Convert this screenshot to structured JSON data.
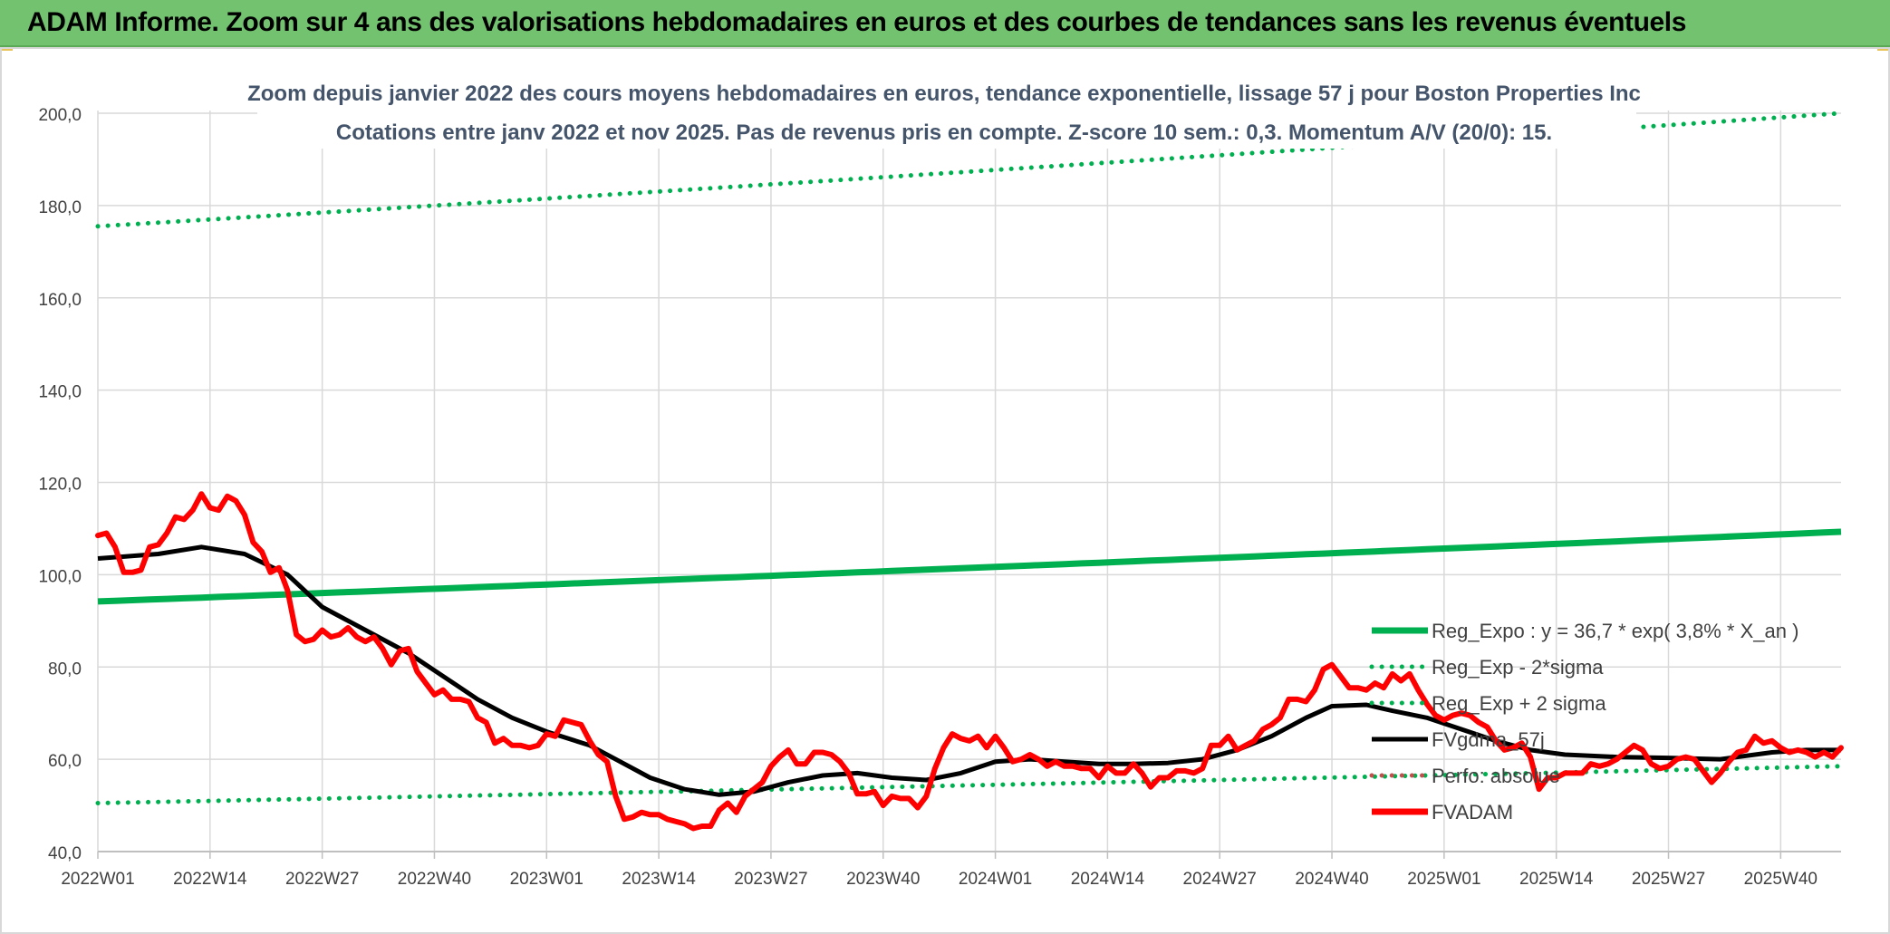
{
  "header": {
    "title": "ADAM Informe. Zoom sur 4 ans des valorisations hebdomadaires en euros et des courbes de tendances sans les revenus éventuels"
  },
  "chart_data": {
    "type": "line",
    "title_line1": "Zoom depuis janvier 2022 des cours moyens hebdomadaires en euros, tendance exponentielle, lissage 57 j pour Boston Properties Inc",
    "title_line2": "Cotations entre janv 2022 et nov 2025. Pas de revenus pris en compte. Z-score 10 sem.: 0,3. Momentum A/V (20/0): 15.",
    "ylim": [
      40,
      200
    ],
    "yticks": [
      "40,0",
      "60,0",
      "80,0",
      "100,0",
      "120,0",
      "140,0",
      "160,0",
      "180,0",
      "200,0"
    ],
    "ytick_values": [
      40,
      60,
      80,
      100,
      120,
      140,
      160,
      180,
      200
    ],
    "x_weeks": 202,
    "xticks": [
      "2022W01",
      "2022W14",
      "2022W27",
      "2022W40",
      "2023W01",
      "2023W14",
      "2023W27",
      "2023W40",
      "2024W01",
      "2024W14",
      "2024W27",
      "2024W40",
      "2025W01",
      "2025W14",
      "2025W27",
      "2025W40"
    ],
    "xtick_weeks": [
      0,
      13,
      26,
      39,
      52,
      65,
      78,
      91,
      104,
      117,
      130,
      143,
      156,
      169,
      182,
      195
    ],
    "colors": {
      "reg": "#00b050",
      "band": "#00b050",
      "smooth": "#000000",
      "price": "#ff0000",
      "perf": "#c0504d",
      "grid": "#d9d9d9",
      "axis_text": "#404040",
      "title_text": "#44546a"
    },
    "series": [
      {
        "name": "Reg_Expo : y = 36,7 * exp( 3,8% *  X_an )",
        "style": "solid",
        "kind": "reg",
        "start": 94.2,
        "end": 109.3
      },
      {
        "name": "Reg_Exp - 2*sigma",
        "style": "dotted",
        "kind": "reg_low",
        "start": 50.5,
        "end": 58.5
      },
      {
        "name": "Reg_Exp + 2 sigma",
        "style": "dotted",
        "kind": "reg_high",
        "start": 175.5,
        "end": 200
      },
      {
        "name": "FVgdma_57j",
        "style": "solid",
        "kind": "smooth",
        "points": [
          [
            0,
            103.5
          ],
          [
            7,
            104.5
          ],
          [
            12,
            106
          ],
          [
            17,
            104.5
          ],
          [
            22,
            100
          ],
          [
            26,
            93
          ],
          [
            31,
            88
          ],
          [
            36,
            83
          ],
          [
            40,
            78
          ],
          [
            44,
            73
          ],
          [
            48,
            69
          ],
          [
            52,
            66
          ],
          [
            57,
            63
          ],
          [
            60,
            60
          ],
          [
            64,
            56
          ],
          [
            68,
            53.5
          ],
          [
            72,
            52.3
          ],
          [
            76,
            53
          ],
          [
            80,
            55
          ],
          [
            84,
            56.5
          ],
          [
            88,
            57
          ],
          [
            92,
            56
          ],
          [
            96,
            55.5
          ],
          [
            100,
            57
          ],
          [
            104,
            59.5
          ],
          [
            108,
            60
          ],
          [
            112,
            59.5
          ],
          [
            116,
            59
          ],
          [
            120,
            59
          ],
          [
            124,
            59.2
          ],
          [
            128,
            60
          ],
          [
            132,
            62
          ],
          [
            136,
            65
          ],
          [
            140,
            69
          ],
          [
            143,
            71.5
          ],
          [
            147,
            71.8
          ],
          [
            150,
            70.5
          ],
          [
            154,
            69
          ],
          [
            158,
            66.5
          ],
          [
            162,
            64
          ],
          [
            166,
            62
          ],
          [
            170,
            61
          ],
          [
            176,
            60.5
          ],
          [
            182,
            60.3
          ],
          [
            188,
            60
          ],
          [
            194,
            61.5
          ],
          [
            198,
            62
          ],
          [
            202,
            62
          ]
        ]
      },
      {
        "name": "Perfo: absolue",
        "style": "dotted",
        "kind": "perf"
      },
      {
        "name": "FVADAM",
        "style": "solid",
        "kind": "price",
        "points": [
          [
            0,
            108.5
          ],
          [
            1,
            109
          ],
          [
            2,
            106
          ],
          [
            3,
            100.5
          ],
          [
            4,
            100.5
          ],
          [
            5,
            101
          ],
          [
            6,
            106
          ],
          [
            7,
            106.5
          ],
          [
            8,
            109
          ],
          [
            9,
            112.5
          ],
          [
            10,
            112
          ],
          [
            11,
            114
          ],
          [
            12,
            117.5
          ],
          [
            13,
            114.5
          ],
          [
            14,
            114
          ],
          [
            15,
            117
          ],
          [
            16,
            116
          ],
          [
            17,
            113
          ],
          [
            18,
            107
          ],
          [
            19,
            105
          ],
          [
            20,
            100.5
          ],
          [
            21,
            101.5
          ],
          [
            22,
            96.5
          ],
          [
            23,
            87
          ],
          [
            24,
            85.5
          ],
          [
            25,
            86
          ],
          [
            26,
            88
          ],
          [
            27,
            86.5
          ],
          [
            28,
            87
          ],
          [
            29,
            88.5
          ],
          [
            30,
            86.5
          ],
          [
            31,
            85.5
          ],
          [
            32,
            86.5
          ],
          [
            33,
            84
          ],
          [
            34,
            80.5
          ],
          [
            35,
            83.5
          ],
          [
            36,
            84
          ],
          [
            37,
            79
          ],
          [
            38,
            76.5
          ],
          [
            39,
            74
          ],
          [
            40,
            75
          ],
          [
            41,
            73
          ],
          [
            42,
            73
          ],
          [
            43,
            72.5
          ],
          [
            44,
            69
          ],
          [
            45,
            68
          ],
          [
            46,
            63.5
          ],
          [
            47,
            64.5
          ],
          [
            48,
            63
          ],
          [
            49,
            63
          ],
          [
            50,
            62.5
          ],
          [
            51,
            63
          ],
          [
            52,
            65.5
          ],
          [
            53,
            65
          ],
          [
            54,
            68.5
          ],
          [
            55,
            68
          ],
          [
            56,
            67.5
          ],
          [
            57,
            64
          ],
          [
            58,
            61
          ],
          [
            59,
            59.5
          ],
          [
            60,
            52
          ],
          [
            61,
            47
          ],
          [
            62,
            47.5
          ],
          [
            63,
            48.5
          ],
          [
            64,
            48
          ],
          [
            65,
            48
          ],
          [
            66,
            47
          ],
          [
            67,
            46.5
          ],
          [
            68,
            46
          ],
          [
            69,
            45
          ],
          [
            70,
            45.5
          ],
          [
            71,
            45.5
          ],
          [
            72,
            49
          ],
          [
            73,
            50.5
          ],
          [
            74,
            48.5
          ],
          [
            75,
            52
          ],
          [
            76,
            53.5
          ],
          [
            77,
            55
          ],
          [
            78,
            58.5
          ],
          [
            79,
            60.5
          ],
          [
            80,
            62
          ],
          [
            81,
            59
          ],
          [
            82,
            59
          ],
          [
            83,
            61.5
          ],
          [
            84,
            61.5
          ],
          [
            85,
            61
          ],
          [
            86,
            59.5
          ],
          [
            87,
            57
          ],
          [
            88,
            52.5
          ],
          [
            89,
            52.5
          ],
          [
            90,
            53
          ],
          [
            91,
            50
          ],
          [
            92,
            52
          ],
          [
            93,
            51.5
          ],
          [
            94,
            51.5
          ],
          [
            95,
            49.5
          ],
          [
            96,
            52
          ],
          [
            97,
            58
          ],
          [
            98,
            62.5
          ],
          [
            99,
            65.5
          ],
          [
            100,
            64.5
          ],
          [
            101,
            64
          ],
          [
            102,
            65
          ],
          [
            103,
            62.5
          ],
          [
            104,
            65
          ],
          [
            105,
            62.5
          ],
          [
            106,
            59.5
          ],
          [
            107,
            60
          ],
          [
            108,
            61
          ],
          [
            109,
            60
          ],
          [
            110,
            58.5
          ],
          [
            111,
            59.5
          ],
          [
            112,
            58.5
          ],
          [
            113,
            58.5
          ],
          [
            114,
            58
          ],
          [
            115,
            58
          ],
          [
            116,
            56
          ],
          [
            117,
            58.5
          ],
          [
            118,
            57
          ],
          [
            119,
            57
          ],
          [
            120,
            59
          ],
          [
            121,
            57
          ],
          [
            122,
            54
          ],
          [
            123,
            56
          ],
          [
            124,
            56
          ],
          [
            125,
            57.5
          ],
          [
            126,
            57.5
          ],
          [
            127,
            57
          ],
          [
            128,
            58
          ],
          [
            129,
            63
          ],
          [
            130,
            63
          ],
          [
            131,
            65
          ],
          [
            132,
            62
          ],
          [
            133,
            63
          ],
          [
            134,
            64
          ],
          [
            135,
            66.5
          ],
          [
            136,
            67.5
          ],
          [
            137,
            69
          ],
          [
            138,
            73
          ],
          [
            139,
            73
          ],
          [
            140,
            72.5
          ],
          [
            141,
            75
          ],
          [
            142,
            79.5
          ],
          [
            143,
            80.5
          ],
          [
            144,
            78
          ],
          [
            145,
            75.5
          ],
          [
            146,
            75.5
          ],
          [
            147,
            75
          ],
          [
            148,
            76.5
          ],
          [
            149,
            75.5
          ],
          [
            150,
            78.5
          ],
          [
            151,
            77
          ],
          [
            152,
            78.5
          ],
          [
            153,
            75
          ],
          [
            154,
            72
          ],
          [
            155,
            69.5
          ],
          [
            156,
            68.5
          ],
          [
            157,
            69.5
          ],
          [
            158,
            70
          ],
          [
            159,
            69.5
          ],
          [
            160,
            68
          ],
          [
            161,
            67
          ],
          [
            162,
            64
          ],
          [
            163,
            62
          ],
          [
            164,
            62.5
          ],
          [
            165,
            63.5
          ],
          [
            166,
            60.5
          ],
          [
            167,
            53.5
          ],
          [
            168,
            56
          ],
          [
            169,
            56
          ],
          [
            170,
            57
          ],
          [
            171,
            57
          ],
          [
            172,
            57
          ],
          [
            173,
            59
          ],
          [
            174,
            58.5
          ],
          [
            175,
            59
          ],
          [
            176,
            60
          ],
          [
            177,
            61.5
          ],
          [
            178,
            63
          ],
          [
            179,
            62
          ],
          [
            180,
            59
          ],
          [
            181,
            58
          ],
          [
            182,
            58.5
          ],
          [
            183,
            60
          ],
          [
            184,
            60.5
          ],
          [
            185,
            60
          ],
          [
            186,
            57.5
          ],
          [
            187,
            55
          ],
          [
            188,
            57
          ],
          [
            189,
            59.5
          ],
          [
            190,
            61.5
          ],
          [
            191,
            62
          ],
          [
            192,
            65
          ],
          [
            193,
            63.5
          ],
          [
            194,
            64
          ],
          [
            195,
            62.5
          ],
          [
            196,
            61.5
          ],
          [
            197,
            62
          ],
          [
            198,
            61.5
          ],
          [
            199,
            60.5
          ],
          [
            200,
            61.5
          ],
          [
            201,
            60.5
          ],
          [
            202,
            62.5
          ]
        ]
      }
    ]
  }
}
